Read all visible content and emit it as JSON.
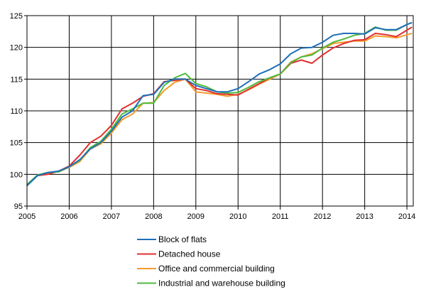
{
  "chart_data": {
    "type": "line",
    "title": "",
    "xlabel": "",
    "ylabel": "",
    "xlim": [
      2005,
      2014.15
    ],
    "ylim": [
      95,
      125
    ],
    "grid": true,
    "legend_position": "bottom",
    "x_tick_labels": [
      "2005",
      "2006",
      "2007",
      "2008",
      "2009",
      "2010",
      "2011",
      "2012",
      "2013",
      "2014"
    ],
    "y_tick_labels": [
      "95",
      "100",
      "105",
      "110",
      "115",
      "120",
      "125"
    ],
    "x": [
      2005.0,
      2005.25,
      2005.5,
      2005.75,
      2006.0,
      2006.25,
      2006.5,
      2006.75,
      2007.0,
      2007.25,
      2007.5,
      2007.75,
      2008.0,
      2008.25,
      2008.5,
      2008.75,
      2009.0,
      2009.25,
      2009.5,
      2009.75,
      2010.0,
      2010.25,
      2010.5,
      2010.75,
      2011.0,
      2011.25,
      2011.5,
      2011.75,
      2012.0,
      2012.25,
      2012.5,
      2012.75,
      2013.0,
      2013.25,
      2013.5,
      2013.75,
      2014.0,
      2014.12
    ],
    "series": [
      {
        "name": "Block of flats",
        "color": "#1f6fb8",
        "values": [
          98.2,
          99.8,
          100.3,
          100.5,
          101.2,
          102.3,
          104.0,
          105.0,
          106.8,
          109.0,
          110.0,
          112.4,
          112.6,
          114.5,
          115.0,
          115.0,
          114.0,
          113.5,
          113.0,
          113.0,
          113.5,
          114.6,
          115.8,
          116.5,
          117.4,
          119.0,
          119.9,
          120.0,
          120.8,
          121.9,
          122.2,
          122.2,
          122.1,
          123.1,
          122.8,
          122.8,
          123.6,
          123.9
        ]
      },
      {
        "name": "Detached house",
        "color": "#e03030",
        "values": [
          98.3,
          99.8,
          100.0,
          100.5,
          101.3,
          103.0,
          105.0,
          106.0,
          107.7,
          110.3,
          111.2,
          112.3,
          112.7,
          114.6,
          114.8,
          115.0,
          113.5,
          113.2,
          112.7,
          112.6,
          112.5,
          113.4,
          114.3,
          115.2,
          115.8,
          117.5,
          118.0,
          117.5,
          118.8,
          119.9,
          120.6,
          121.1,
          121.2,
          122.2,
          122.0,
          121.7,
          122.7,
          123.2
        ]
      },
      {
        "name": "Office and commercial building",
        "color": "#f59a2e",
        "values": [
          98.3,
          99.8,
          100.2,
          100.4,
          101.1,
          102.0,
          104.0,
          104.8,
          106.5,
          108.6,
          109.5,
          111.2,
          111.3,
          113.2,
          114.5,
          115.0,
          113.0,
          112.8,
          112.6,
          112.3,
          112.6,
          113.3,
          114.2,
          115.0,
          115.8,
          117.7,
          118.5,
          119.0,
          119.8,
          120.6,
          120.8,
          121.0,
          121.0,
          121.8,
          121.7,
          121.5,
          122.0,
          122.2
        ]
      },
      {
        "name": "Industrial and warehouse  building",
        "color": "#4cbb3c",
        "values": [
          98.4,
          99.9,
          100.3,
          100.4,
          101.2,
          102.2,
          104.2,
          105.2,
          107.1,
          109.5,
          110.3,
          111.2,
          111.2,
          114.0,
          115.2,
          115.9,
          114.3,
          113.8,
          113.0,
          112.8,
          112.9,
          113.7,
          114.6,
          115.2,
          115.8,
          117.6,
          118.5,
          118.8,
          119.9,
          120.8,
          121.3,
          121.9,
          122.2,
          123.2,
          122.7,
          122.7,
          123.6,
          123.9
        ]
      }
    ]
  }
}
